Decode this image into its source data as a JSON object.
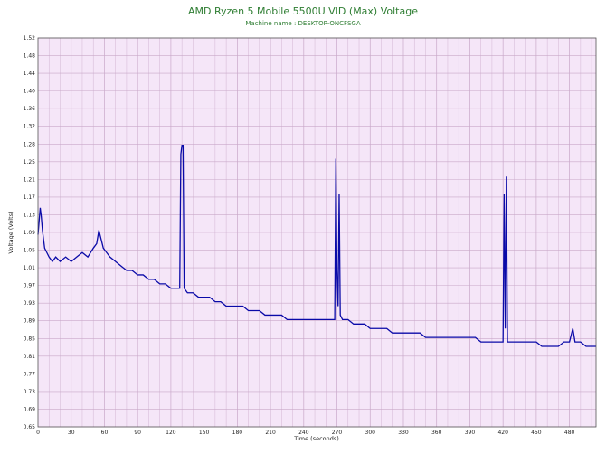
{
  "chart_data": {
    "type": "line",
    "title": "AMD Ryzen 5 Mobile 5500U VID (Max) Voltage",
    "subtitle": "Machine name : DESKTOP-ONCFSGA",
    "xlabel": "Time (seconds)",
    "ylabel": "Voltage (Volts)",
    "xlim": [
      0,
      504
    ],
    "ylim": [
      0.65,
      1.52
    ],
    "x_ticks": [
      0,
      30,
      60,
      90,
      120,
      150,
      180,
      210,
      240,
      270,
      300,
      330,
      360,
      390,
      420,
      450,
      480
    ],
    "y_ticks": [
      "0.65",
      "0.69",
      "0.73",
      "0.77",
      "0.81",
      "0.85",
      "0.89",
      "0.93",
      "0.97",
      "1.01",
      "1.05",
      "1.09",
      "1.13",
      "1.17",
      "1.21",
      "1.25",
      "1.28",
      "1.32",
      "1.36",
      "1.40",
      "1.44",
      "1.48",
      "1.52"
    ],
    "y_tick_labels": [
      "0.65",
      "0.69",
      "0.73",
      "0.77",
      "0.81",
      "0.85",
      "0.89",
      "0.93",
      "0.97",
      "1.01",
      "1.05",
      "1.09",
      "1.13",
      "1.17",
      "1.21",
      "1.25",
      "1.28",
      "1.32",
      "1.36",
      "1.40",
      "1.44",
      "1.48",
      "1.52"
    ],
    "grid": true,
    "colors": {
      "line": "#0a0aa8",
      "plot_background": "#f5e6f8",
      "grid": "#c9a8c9",
      "title": "#2e7d32"
    },
    "series": [
      {
        "points": [
          [
            0,
            1.08
          ],
          [
            1,
            1.11
          ],
          [
            2,
            1.14
          ],
          [
            3,
            1.12
          ],
          [
            4,
            1.09
          ],
          [
            5,
            1.07
          ],
          [
            6,
            1.05
          ],
          [
            8,
            1.04
          ],
          [
            10,
            1.03
          ],
          [
            13,
            1.02
          ],
          [
            16,
            1.03
          ],
          [
            20,
            1.02
          ],
          [
            25,
            1.03
          ],
          [
            30,
            1.02
          ],
          [
            35,
            1.03
          ],
          [
            40,
            1.04
          ],
          [
            45,
            1.03
          ],
          [
            50,
            1.05
          ],
          [
            53,
            1.06
          ],
          [
            55,
            1.09
          ],
          [
            57,
            1.07
          ],
          [
            59,
            1.05
          ],
          [
            62,
            1.04
          ],
          [
            65,
            1.03
          ],
          [
            70,
            1.02
          ],
          [
            75,
            1.01
          ],
          [
            80,
            1.0
          ],
          [
            85,
            1.0
          ],
          [
            90,
            0.99
          ],
          [
            95,
            0.99
          ],
          [
            100,
            0.98
          ],
          [
            105,
            0.98
          ],
          [
            110,
            0.97
          ],
          [
            115,
            0.97
          ],
          [
            120,
            0.96
          ],
          [
            125,
            0.96
          ],
          [
            128,
            0.96
          ],
          [
            129,
            1.26
          ],
          [
            130,
            1.28
          ],
          [
            131,
            1.28
          ],
          [
            132,
            0.96
          ],
          [
            135,
            0.95
          ],
          [
            140,
            0.95
          ],
          [
            145,
            0.94
          ],
          [
            150,
            0.94
          ],
          [
            155,
            0.94
          ],
          [
            160,
            0.93
          ],
          [
            165,
            0.93
          ],
          [
            170,
            0.92
          ],
          [
            175,
            0.92
          ],
          [
            180,
            0.92
          ],
          [
            185,
            0.92
          ],
          [
            190,
            0.91
          ],
          [
            195,
            0.91
          ],
          [
            200,
            0.91
          ],
          [
            205,
            0.9
          ],
          [
            210,
            0.9
          ],
          [
            215,
            0.9
          ],
          [
            220,
            0.9
          ],
          [
            225,
            0.89
          ],
          [
            230,
            0.89
          ],
          [
            235,
            0.89
          ],
          [
            240,
            0.89
          ],
          [
            245,
            0.89
          ],
          [
            250,
            0.89
          ],
          [
            255,
            0.89
          ],
          [
            260,
            0.89
          ],
          [
            265,
            0.89
          ],
          [
            268,
            0.89
          ],
          [
            269,
            1.25
          ],
          [
            270,
            1.0
          ],
          [
            271,
            0.92
          ],
          [
            272,
            1.17
          ],
          [
            273,
            0.9
          ],
          [
            275,
            0.89
          ],
          [
            280,
            0.89
          ],
          [
            285,
            0.88
          ],
          [
            290,
            0.88
          ],
          [
            295,
            0.88
          ],
          [
            300,
            0.87
          ],
          [
            305,
            0.87
          ],
          [
            310,
            0.87
          ],
          [
            315,
            0.87
          ],
          [
            320,
            0.86
          ],
          [
            325,
            0.86
          ],
          [
            330,
            0.86
          ],
          [
            335,
            0.86
          ],
          [
            340,
            0.86
          ],
          [
            345,
            0.86
          ],
          [
            350,
            0.85
          ],
          [
            355,
            0.85
          ],
          [
            360,
            0.85
          ],
          [
            365,
            0.85
          ],
          [
            370,
            0.85
          ],
          [
            375,
            0.85
          ],
          [
            380,
            0.85
          ],
          [
            385,
            0.85
          ],
          [
            390,
            0.85
          ],
          [
            395,
            0.85
          ],
          [
            400,
            0.84
          ],
          [
            405,
            0.84
          ],
          [
            410,
            0.84
          ],
          [
            415,
            0.84
          ],
          [
            420,
            0.84
          ],
          [
            421,
            1.17
          ],
          [
            422,
            0.87
          ],
          [
            423,
            1.21
          ],
          [
            424,
            0.84
          ],
          [
            425,
            0.84
          ],
          [
            430,
            0.84
          ],
          [
            435,
            0.84
          ],
          [
            440,
            0.84
          ],
          [
            445,
            0.84
          ],
          [
            450,
            0.84
          ],
          [
            455,
            0.83
          ],
          [
            460,
            0.83
          ],
          [
            465,
            0.83
          ],
          [
            470,
            0.83
          ],
          [
            475,
            0.84
          ],
          [
            480,
            0.84
          ],
          [
            483,
            0.87
          ],
          [
            485,
            0.84
          ],
          [
            490,
            0.84
          ],
          [
            495,
            0.83
          ],
          [
            500,
            0.83
          ],
          [
            504,
            0.83
          ]
        ]
      }
    ]
  }
}
